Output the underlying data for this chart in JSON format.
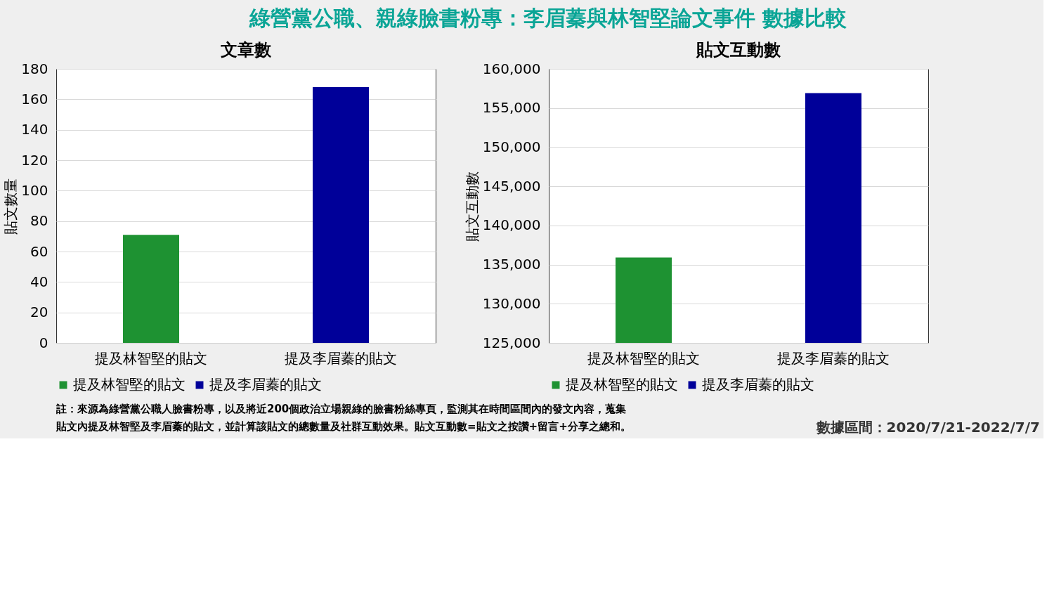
{
  "chart_data": [
    {
      "type": "bar",
      "title": "文章數",
      "ylabel": "貼文數量",
      "categories": [
        "提及林智堅的貼文",
        "提及李眉蓁的貼文"
      ],
      "ylim": [
        0,
        180
      ],
      "yticks": [
        0,
        20,
        40,
        60,
        80,
        100,
        120,
        140,
        160,
        180
      ],
      "grid": "y",
      "legend": "bottom",
      "series": [
        {
          "name": "提及林智堅的貼文",
          "color": "#1e9232",
          "values": [
            71,
            null
          ]
        },
        {
          "name": "提及李眉蓁的貼文",
          "color": "#000099",
          "values": [
            null,
            168
          ]
        }
      ],
      "annotations": [
        "綠營黨公職、親綠臉書粉專：李眉蓁與林智堅論文事件  數據比較"
      ]
    },
    {
      "type": "bar",
      "title": "貼文互動數",
      "ylabel": "貼文互動數",
      "categories": [
        "提及林智堅的貼文",
        "提及李眉蓁的貼文"
      ],
      "ylim": [
        125000,
        160000
      ],
      "yticks": [
        {
          "value": 125000,
          "label": "125,000"
        },
        {
          "value": 130000,
          "label": "130,000"
        },
        {
          "value": 135000,
          "label": "135,000"
        },
        {
          "value": 140000,
          "label": "140,000"
        },
        {
          "value": 145000,
          "label": "145,000"
        },
        {
          "value": 150000,
          "label": "150,000"
        },
        {
          "value": 155000,
          "label": "155,000"
        },
        {
          "value": 160000,
          "label": "160,000"
        }
      ],
      "grid": "y",
      "legend": "bottom",
      "series": [
        {
          "name": "提及林智堅的貼文",
          "color": "#1e9232",
          "values": [
            135900,
            null
          ]
        },
        {
          "name": "提及李眉蓁的貼文",
          "color": "#000099",
          "values": [
            null,
            156900
          ]
        }
      ],
      "annotations": [
        "註：來源為綠營黨公職人臉書粉專，以及將近200個政治立場親綠的臉書粉絲專頁，監測其在時間區間內的發文內容，蒐集",
        "貼文內提及林智堅及李眉蓁的貼文，並計算該貼文的總數量及社群互動效果。貼文互動數=貼文之按讚+留言+分享之總和。",
        "數據區間：2020/7/21-2022/7/7"
      ]
    }
  ]
}
